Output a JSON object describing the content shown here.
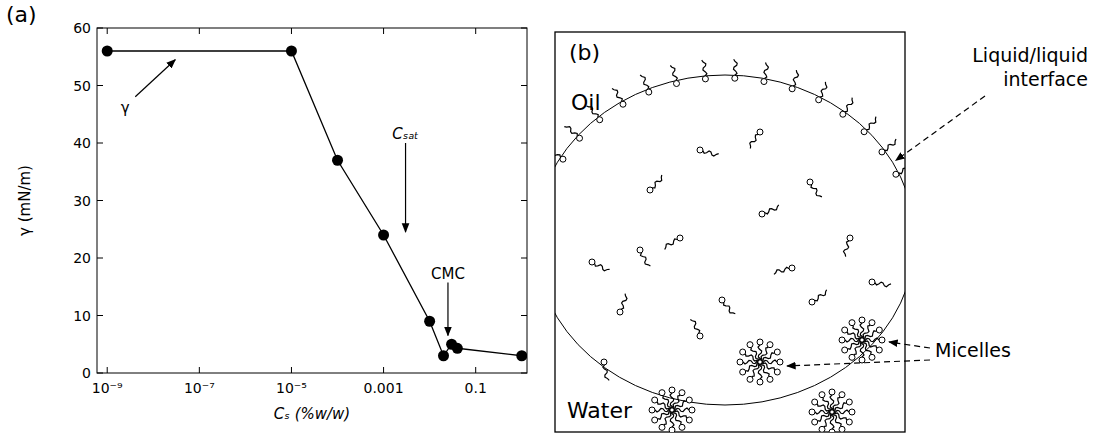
{
  "chart_data": {
    "type": "line",
    "panel": "(a)",
    "x_label": "Cₛ (%w/w)",
    "y_label": "γ (mN/m)",
    "log": "x",
    "x": [
      1e-09,
      1e-05,
      0.0001,
      0.001,
      0.01,
      0.02,
      0.03,
      0.04,
      1
    ],
    "values": [
      56,
      56,
      37,
      24,
      9,
      3,
      5,
      4.3,
      3
    ],
    "color": "#000000",
    "marker": "circle",
    "line_style": "solid",
    "xlim": [
      6e-10,
      1.3
    ],
    "xticks": [
      {
        "value": 1e-09,
        "label": "10⁻⁹"
      },
      {
        "value": 1e-07,
        "label": "10⁻⁷"
      },
      {
        "value": 1e-05,
        "label": "10⁻⁵"
      },
      0.001,
      0.1
    ],
    "ylim": [
      0,
      60
    ],
    "yticks": [
      0,
      10,
      20,
      30,
      40,
      50,
      60
    ],
    "grid": false,
    "annotations": [
      {
        "text": "γ",
        "x": 3e-08,
        "y": 55
      },
      {
        "text": "Cₛₐₜ",
        "x": 0.003,
        "y": 24
      },
      {
        "text": "CMC",
        "x": 0.025,
        "y": 6
      }
    ]
  },
  "diagram": {
    "panel": "(b)",
    "regions": [
      "Oil",
      "Water"
    ],
    "interface_label": "Liquid/liquid interface",
    "micelles_label": "Micelles"
  }
}
